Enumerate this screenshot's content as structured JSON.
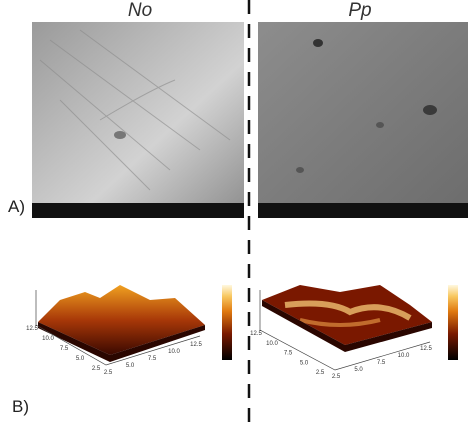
{
  "header": {
    "left_label": "No",
    "right_label": "Pp"
  },
  "panels": [
    {
      "label": "A)"
    },
    {
      "label": "B)"
    }
  ],
  "afm_plots": [
    {
      "axis_a_ticks": [
        "12.5",
        "10.0",
        "7.5",
        "5.0",
        "2.5"
      ],
      "axis_b_ticks": [
        "2.5",
        "5.0",
        "7.5",
        "10.0",
        "12.5"
      ]
    },
    {
      "axis_a_ticks": [
        "12.5",
        "10.0",
        "7.5",
        "5.0",
        "2.5"
      ],
      "axis_b_ticks": [
        "2.5",
        "5.0",
        "7.5",
        "10.0",
        "12.5"
      ]
    }
  ]
}
